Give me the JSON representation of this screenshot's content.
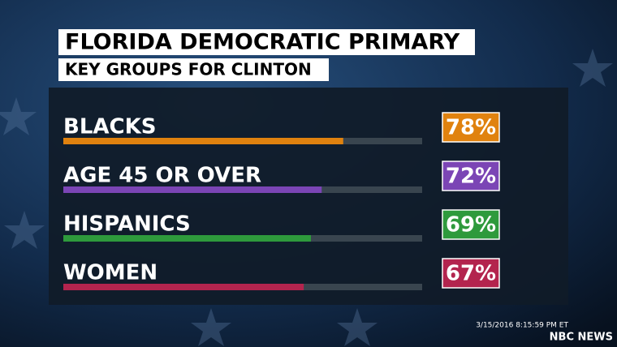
{
  "chart_data": {
    "type": "hbar",
    "title": "FLORIDA DEMOCRATIC PRIMARY",
    "subtitle": "KEY GROUPS FOR CLINTON",
    "categories": [
      "BLACKS",
      "AGE 45 OR OVER",
      "HISPANICS",
      "WOMEN"
    ],
    "values": [
      78,
      72,
      69,
      67
    ],
    "value_labels": [
      "78%",
      "72%",
      "69%",
      "67%"
    ],
    "colors": [
      "#e0820f",
      "#7b45b5",
      "#2e9a3c",
      "#b3244e"
    ],
    "xlim": [
      0,
      100
    ]
  },
  "timestamp": "3/15/2016 8:15:59 PM ET",
  "source": "NBC NEWS"
}
